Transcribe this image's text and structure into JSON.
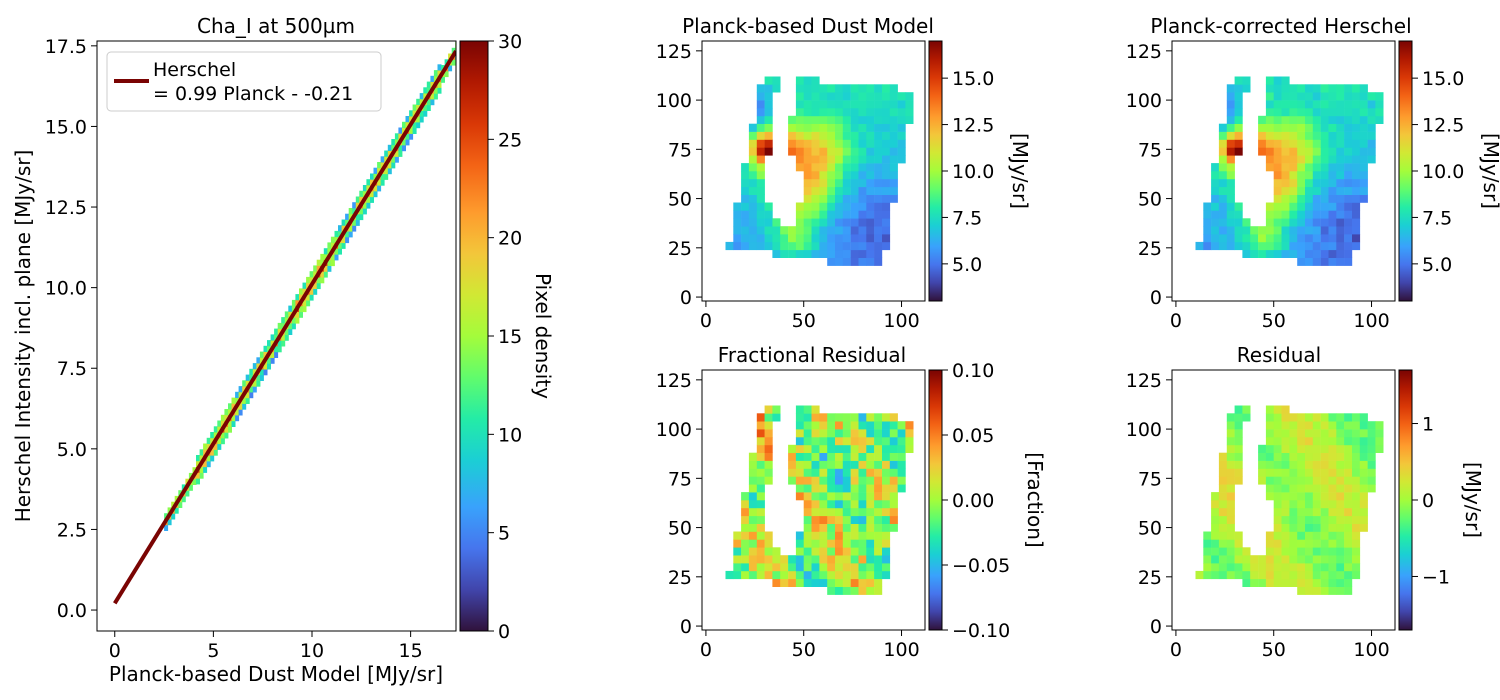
{
  "figure": {
    "background": "#ffffff"
  },
  "chart_data": [
    {
      "id": "scatter",
      "type": "heatmap",
      "title": "Cha_I at 500µm",
      "xlabel": "Planck-based Dust Model [MJy/sr]",
      "ylabel": "Herschel Intensity incl. plane [MJy/sr]",
      "xlim": [
        -0.9,
        17.3
      ],
      "ylim": [
        -0.65,
        17.65
      ],
      "xticks": [
        0,
        5,
        10,
        15
      ],
      "xticklabels": [
        "0",
        "5",
        "10",
        "15"
      ],
      "yticks": [
        0.0,
        2.5,
        5.0,
        7.5,
        10.0,
        12.5,
        15.0,
        17.5
      ],
      "yticklabels": [
        "0.0",
        "2.5",
        "5.0",
        "7.5",
        "10.0",
        "12.5",
        "15.0",
        "17.5"
      ],
      "fit_line": {
        "slope": 0.99,
        "intercept": 0.21,
        "x_range": [
          0,
          17.3
        ],
        "color": "#7a0403"
      },
      "legend": {
        "label_line1": "Herschel",
        "label_line2": "= 0.99 Planck - -0.21",
        "location": "upper-left"
      },
      "density_range": [
        0,
        30
      ],
      "colorbar": {
        "label": "Pixel density",
        "ticks": [
          0,
          5,
          10,
          15,
          20,
          25,
          30
        ],
        "ticklabels": [
          "0",
          "5",
          "10",
          "15",
          "20",
          "25",
          "30"
        ]
      },
      "colormap": "turbo"
    },
    {
      "id": "dustmodel",
      "type": "heatmap",
      "title": "Planck-based Dust Model",
      "xlim": [
        -2,
        112
      ],
      "ylim": [
        -2,
        130
      ],
      "xticks": [
        0,
        50,
        100
      ],
      "xticklabels": [
        "0",
        "50",
        "100"
      ],
      "yticks": [
        0,
        25,
        50,
        75,
        100,
        125
      ],
      "yticklabels": [
        "0",
        "25",
        "50",
        "75",
        "100",
        "125"
      ],
      "colorbar": {
        "label": "[MJy/sr]",
        "range": [
          3.0,
          17.0
        ],
        "ticks": [
          5.0,
          7.5,
          10.0,
          12.5,
          15.0
        ],
        "ticklabels": [
          "5.0",
          "7.5",
          "10.0",
          "12.5",
          "15.0"
        ]
      },
      "colormap": "turbo"
    },
    {
      "id": "corrected",
      "type": "heatmap",
      "title": "Planck-corrected Herschel",
      "xlim": [
        -2,
        112
      ],
      "ylim": [
        -2,
        130
      ],
      "xticks": [
        0,
        50,
        100
      ],
      "xticklabels": [
        "0",
        "50",
        "100"
      ],
      "yticks": [
        0,
        25,
        50,
        75,
        100,
        125
      ],
      "yticklabels": [
        "0",
        "25",
        "50",
        "75",
        "100",
        "125"
      ],
      "colorbar": {
        "label": "[MJy/sr]",
        "range": [
          3.0,
          17.0
        ],
        "ticks": [
          5.0,
          7.5,
          10.0,
          12.5,
          15.0
        ],
        "ticklabels": [
          "5.0",
          "7.5",
          "10.0",
          "12.5",
          "15.0"
        ]
      },
      "colormap": "turbo"
    },
    {
      "id": "fracres",
      "type": "heatmap",
      "title": "Fractional Residual",
      "xlim": [
        -2,
        112
      ],
      "ylim": [
        -2,
        130
      ],
      "xticks": [
        0,
        50,
        100
      ],
      "xticklabels": [
        "0",
        "50",
        "100"
      ],
      "yticks": [
        0,
        25,
        50,
        75,
        100,
        125
      ],
      "yticklabels": [
        "0",
        "25",
        "50",
        "75",
        "100",
        "125"
      ],
      "colorbar": {
        "label": "[Fraction]",
        "range": [
          -0.1,
          0.1
        ],
        "ticks": [
          -0.1,
          -0.05,
          0.0,
          0.05,
          0.1
        ],
        "ticklabels": [
          "−0.10",
          "−0.05",
          "0.00",
          "0.05",
          "0.10"
        ]
      },
      "colormap": "turbo"
    },
    {
      "id": "residual",
      "type": "heatmap",
      "title": "Residual",
      "xlim": [
        -2,
        112
      ],
      "ylim": [
        -2,
        130
      ],
      "xticks": [
        0,
        50,
        100
      ],
      "xticklabels": [
        "0",
        "50",
        "100"
      ],
      "yticks": [
        0,
        25,
        50,
        75,
        100,
        125
      ],
      "yticklabels": [
        "0",
        "25",
        "50",
        "75",
        "100",
        "125"
      ],
      "colorbar": {
        "label": "[MJy/sr]",
        "range": [
          -1.7,
          1.7
        ],
        "ticks": [
          -1,
          0,
          1
        ],
        "ticklabels": [
          "−1",
          "0",
          "1"
        ]
      },
      "colormap": "turbo"
    }
  ]
}
